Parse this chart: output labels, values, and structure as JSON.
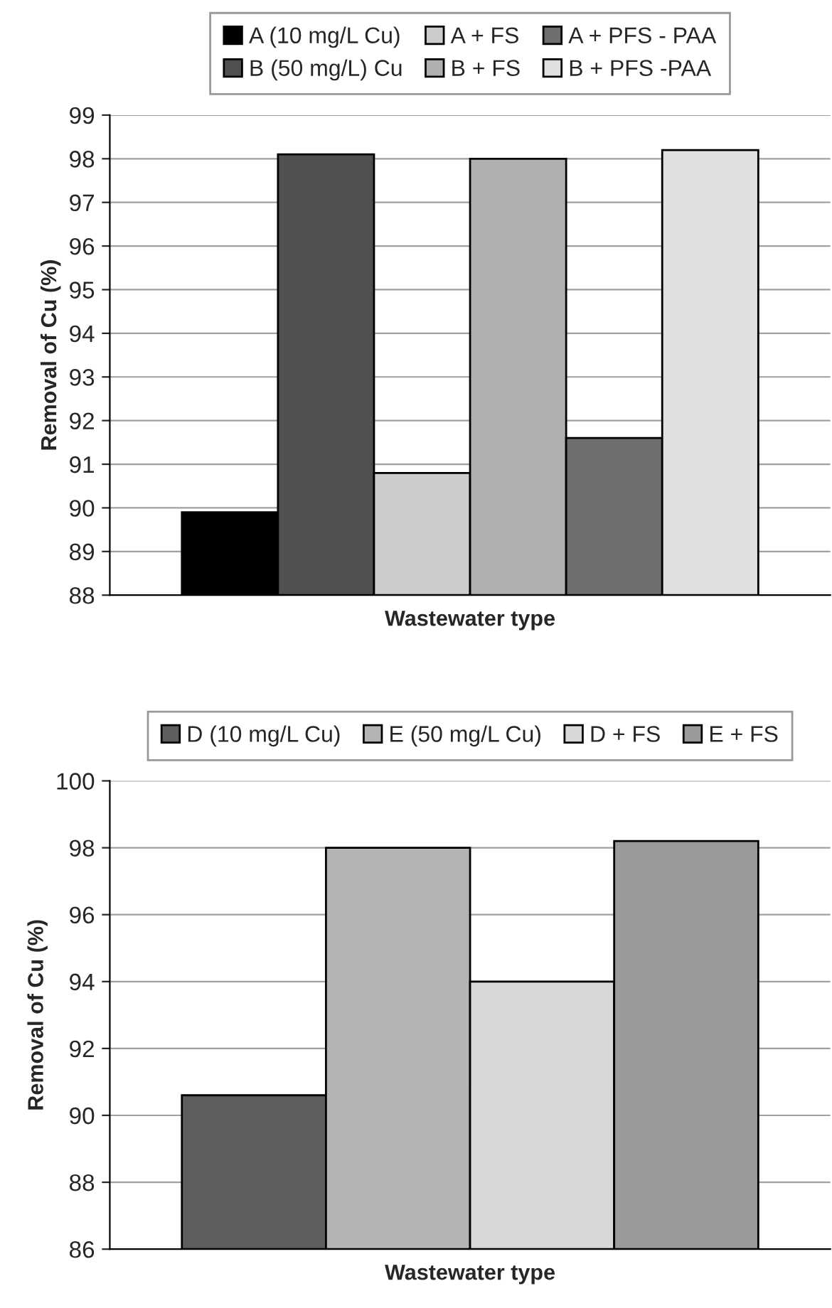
{
  "chart_data": [
    {
      "type": "bar",
      "xlabel": "Wastewater type",
      "ylabel": "Removal of Cu (%)",
      "categories": [
        null
      ],
      "ylim": [
        88,
        99
      ],
      "yticks": [
        88,
        89,
        90,
        91,
        92,
        93,
        94,
        95,
        96,
        97,
        98,
        99
      ],
      "grid": "y",
      "legend": "top",
      "series": [
        {
          "name": "A (10 mg/L Cu)",
          "color": "#000000",
          "values": [
            89.9
          ]
        },
        {
          "name": "B (50 mg/L) Cu",
          "color": "#505050",
          "values": [
            98.1
          ]
        },
        {
          "name": "A + FS",
          "color": "#cccccc",
          "values": [
            90.8
          ]
        },
        {
          "name": "B + FS",
          "color": "#b0b0b0",
          "values": [
            98.0
          ]
        },
        {
          "name": "A + PFS - PAA",
          "color": "#6e6e6e",
          "values": [
            91.6
          ]
        },
        {
          "name": "B + PFS -PAA",
          "color": "#e0e0e0",
          "values": [
            98.2
          ]
        }
      ]
    },
    {
      "type": "bar",
      "xlabel": "Wastewater type",
      "ylabel": "Removal of Cu (%)",
      "categories": [
        null
      ],
      "ylim": [
        86,
        100
      ],
      "yticks": [
        86,
        88,
        90,
        92,
        94,
        96,
        98,
        100
      ],
      "grid": "y",
      "legend": "top",
      "series": [
        {
          "name": "D (10 mg/L Cu)",
          "color": "#5e5e5e",
          "values": [
            90.6
          ]
        },
        {
          "name": "E (50 mg/L Cu)",
          "color": "#b4b4b4",
          "values": [
            98.0
          ]
        },
        {
          "name": "D + FS",
          "color": "#d8d8d8",
          "values": [
            94.0
          ]
        },
        {
          "name": "E + FS",
          "color": "#9a9a9a",
          "values": [
            98.2
          ]
        }
      ]
    }
  ]
}
